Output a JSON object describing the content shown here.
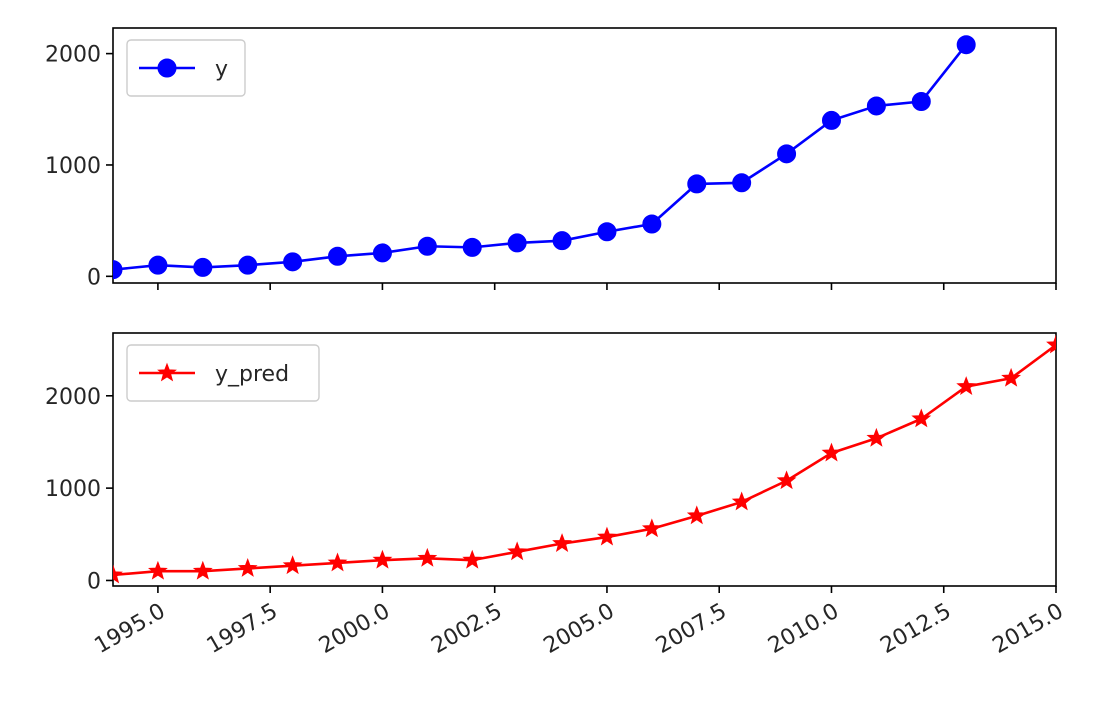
{
  "chart_data": [
    {
      "type": "line",
      "series": [
        {
          "name": "y",
          "color": "#0000ff",
          "marker": "circle",
          "x": [
            1994,
            1995,
            1996,
            1997,
            1998,
            1999,
            2000,
            2001,
            2002,
            2003,
            2004,
            2005,
            2006,
            2007,
            2008,
            2009,
            2010,
            2011,
            2012,
            2013
          ],
          "values": [
            60,
            100,
            80,
            100,
            130,
            180,
            210,
            270,
            260,
            300,
            320,
            400,
            470,
            830,
            840,
            1100,
            1400,
            1530,
            1570,
            2080
          ]
        }
      ],
      "xlim": [
        1994,
        2015
      ],
      "ylim": [
        -60,
        2230
      ],
      "yticks": [
        0,
        1000,
        2000
      ],
      "ytick_labels": [
        "0",
        "1000",
        "2000"
      ],
      "xticks": [
        1995,
        1997.5,
        2000,
        2002.5,
        2005,
        2007.5,
        2010,
        2012.5,
        2015
      ],
      "show_xtick_labels": false,
      "legend": {
        "position": "upper-left",
        "label": "y"
      },
      "grid": false
    },
    {
      "type": "line",
      "series": [
        {
          "name": "y_pred",
          "color": "#ff0000",
          "marker": "star",
          "x": [
            1994,
            1995,
            1996,
            1997,
            1998,
            1999,
            2000,
            2001,
            2002,
            2003,
            2004,
            2005,
            2006,
            2007,
            2008,
            2009,
            2010,
            2011,
            2012,
            2013,
            2014,
            2015
          ],
          "values": [
            60,
            100,
            100,
            130,
            160,
            190,
            220,
            240,
            220,
            310,
            400,
            470,
            560,
            700,
            850,
            1080,
            1380,
            1540,
            1750,
            2100,
            2190,
            2550
          ]
        }
      ],
      "xlim": [
        1994,
        2015
      ],
      "ylim": [
        -60,
        2680
      ],
      "yticks": [
        0,
        1000,
        2000
      ],
      "ytick_labels": [
        "0",
        "1000",
        "2000"
      ],
      "xticks": [
        1995,
        1997.5,
        2000,
        2002.5,
        2005,
        2007.5,
        2010,
        2012.5,
        2015
      ],
      "xtick_labels": [
        "1995.0",
        "1997.5",
        "2000.0",
        "2002.5",
        "2005.0",
        "2007.5",
        "2010.0",
        "2012.5",
        "2015.0"
      ],
      "show_xtick_labels": true,
      "legend": {
        "position": "upper-left",
        "label": "y_pred"
      },
      "grid": false
    }
  ]
}
